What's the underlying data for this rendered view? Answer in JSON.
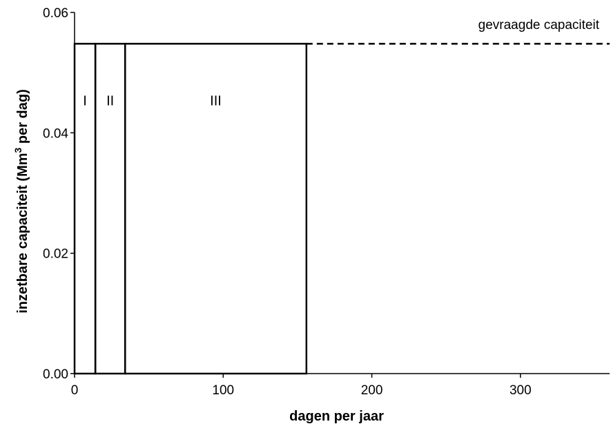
{
  "chart_data": {
    "type": "bar",
    "xlabel": "dagen per jaar",
    "ylabel_parts": {
      "before": "inzetbare capaciteit (Mm",
      "sup": "3",
      "after": " per dag)"
    },
    "xlim": [
      0,
      360
    ],
    "ylim": [
      0,
      0.06
    ],
    "x_ticks": [
      0,
      100,
      200,
      300
    ],
    "x_tick_labels": [
      "0",
      "100",
      "200",
      "300"
    ],
    "y_ticks": [
      0,
      0.02,
      0.04,
      0.06
    ],
    "y_tick_labels": [
      "0.00",
      "0.02",
      "0.04",
      "0.06"
    ],
    "grid": false,
    "bars": [
      {
        "label": "I",
        "x_start": 0,
        "x_end": 14,
        "value": 0.0548
      },
      {
        "label": "II",
        "x_start": 14,
        "x_end": 34,
        "value": 0.0548
      },
      {
        "label": "III",
        "x_start": 34,
        "x_end": 156,
        "value": 0.0548
      }
    ],
    "reference_line": {
      "label": "gevraagde capaciteit",
      "value": 0.0548,
      "style": "dashed"
    },
    "colors": {
      "stroke": "#000000",
      "fill": "none"
    }
  }
}
